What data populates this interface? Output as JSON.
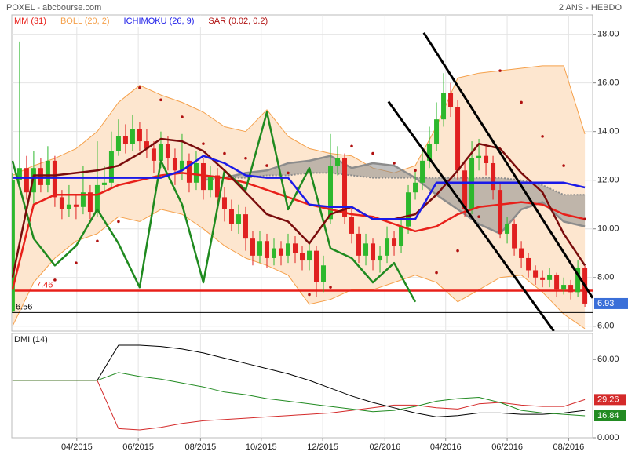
{
  "chart_data": [
    {
      "type": "candlestick",
      "source": "POXEL - abcbourse.com",
      "period": "2 ANS - HEBDO",
      "xlim": [
        -0.1,
        82.1
      ],
      "ylim": [
        5.8,
        18.6
      ],
      "yticks": [
        {
          "value": 6,
          "label": "6.00"
        },
        {
          "value": 8,
          "label": "8.00"
        },
        {
          "value": 10,
          "label": "10.00"
        },
        {
          "value": 12,
          "label": "12.00"
        },
        {
          "value": 14,
          "label": "14.00"
        },
        {
          "value": 16,
          "label": "16.00"
        },
        {
          "value": 18,
          "label": "18.00"
        }
      ],
      "grid": true,
      "up_color": "#2db82d",
      "down_color": "#e02020",
      "last_color": "#3a6fd8",
      "x": [
        0,
        1,
        2,
        3,
        4,
        5,
        6,
        7,
        8,
        9,
        10,
        11,
        12,
        13,
        14,
        15,
        16,
        17,
        18,
        19,
        20,
        21,
        22,
        23,
        24,
        25,
        26,
        27,
        28,
        29,
        30,
        31,
        32,
        33,
        34,
        35,
        36,
        37,
        38,
        39,
        40,
        41,
        42,
        43,
        44,
        45,
        46,
        47,
        48,
        49,
        50,
        51,
        52,
        53,
        54,
        55,
        56,
        57,
        58,
        59,
        60,
        61,
        62,
        63,
        64,
        65,
        66,
        67,
        68,
        69,
        70,
        71,
        72,
        73,
        74,
        75,
        76,
        77,
        78,
        79,
        80,
        81
      ],
      "open": [
        6.6,
        12.0,
        12.5,
        11.5,
        12.5,
        11.8,
        12.8,
        11.3,
        10.8,
        11.0,
        10.9,
        11.5,
        10.7,
        11.8,
        11.9,
        13.2,
        13.8,
        13.5,
        14.1,
        13.6,
        13.3,
        12.8,
        13.5,
        12.9,
        12.4,
        12.8,
        11.9,
        12.7,
        11.6,
        12.2,
        11.3,
        10.8,
        10.2,
        10.6,
        9.6,
        8.9,
        9.5,
        8.8,
        9.2,
        8.9,
        9.4,
        9.0,
        8.7,
        9.1,
        7.8,
        10.4,
        12.6,
        12.9,
        10.5,
        9.8,
        8.9,
        9.4,
        8.7,
        8.9,
        9.6,
        9.3,
        10.1,
        11.5,
        11.9,
        12.8,
        13.5,
        14.5,
        15.6,
        15.0,
        12.4,
        10.8,
        12.9,
        13.0,
        12.7,
        11.6,
        9.8,
        10.2,
        9.2,
        8.8,
        8.3,
        8.0,
        7.9,
        8.1,
        7.5,
        7.7,
        7.4,
        8.4
      ],
      "high": [
        12.3,
        17.7,
        13.0,
        13.2,
        12.9,
        13.4,
        13.0,
        11.6,
        11.8,
        11.4,
        12.6,
        11.8,
        13.6,
        12.6,
        14.0,
        14.5,
        14.3,
        14.7,
        14.4,
        14.1,
        13.6,
        14.0,
        13.8,
        13.3,
        13.9,
        13.1,
        13.2,
        12.9,
        12.6,
        12.5,
        11.7,
        11.2,
        11.0,
        10.9,
        9.9,
        9.9,
        9.8,
        9.6,
        9.5,
        9.8,
        9.7,
        9.3,
        9.5,
        9.3,
        8.9,
        13.9,
        13.4,
        13.1,
        10.9,
        10.1,
        9.8,
        9.6,
        9.3,
        10.1,
        9.9,
        10.4,
        11.8,
        12.4,
        13.3,
        14.2,
        15.2,
        16.4,
        16.0,
        15.3,
        12.8,
        13.6,
        13.7,
        13.5,
        13.0,
        11.9,
        10.5,
        10.4,
        9.5,
        9.0,
        8.5,
        8.3,
        8.4,
        8.2,
        8.0,
        7.9,
        8.7,
        8.5
      ],
      "low": [
        6.56,
        11.8,
        11.2,
        11.0,
        11.5,
        11.5,
        10.9,
        10.4,
        10.5,
        10.4,
        10.6,
        10.4,
        10.5,
        11.5,
        11.7,
        13.0,
        13.1,
        13.2,
        13.2,
        12.9,
        12.3,
        12.5,
        12.4,
        11.8,
        12.0,
        11.5,
        11.6,
        11.2,
        11.3,
        10.9,
        10.3,
        9.9,
        9.8,
        9.1,
        8.5,
        8.6,
        8.4,
        8.5,
        8.5,
        8.6,
        8.6,
        8.3,
        8.3,
        7.2,
        7.4,
        10.2,
        12.2,
        10.2,
        9.4,
        8.6,
        8.5,
        8.3,
        8.2,
        8.6,
        8.9,
        9.0,
        9.8,
        11.2,
        11.6,
        12.5,
        13.2,
        14.2,
        14.6,
        12.0,
        10.5,
        10.6,
        12.4,
        12.2,
        11.2,
        9.6,
        9.4,
        8.9,
        8.4,
        8.0,
        7.7,
        7.6,
        7.6,
        7.2,
        7.3,
        7.1,
        7.2,
        6.8
      ],
      "close": [
        12.0,
        12.5,
        11.5,
        12.5,
        11.8,
        12.8,
        11.3,
        10.8,
        11.0,
        10.9,
        11.5,
        10.7,
        11.8,
        11.9,
        13.2,
        13.8,
        13.5,
        14.1,
        13.6,
        13.3,
        12.8,
        13.5,
        12.9,
        12.4,
        12.8,
        11.9,
        12.7,
        11.6,
        12.2,
        11.3,
        10.8,
        10.2,
        10.6,
        9.6,
        8.9,
        9.5,
        8.8,
        9.2,
        8.9,
        9.4,
        9.0,
        8.7,
        9.1,
        7.8,
        8.5,
        12.6,
        12.9,
        10.5,
        9.8,
        8.9,
        9.4,
        8.7,
        8.9,
        9.6,
        9.3,
        10.1,
        11.5,
        11.9,
        12.8,
        13.5,
        14.5,
        15.6,
        15.0,
        12.4,
        10.8,
        12.9,
        13.0,
        12.7,
        11.6,
        9.8,
        10.2,
        9.2,
        8.8,
        8.3,
        8.0,
        7.9,
        8.1,
        7.5,
        7.7,
        7.4,
        8.4,
        6.93
      ],
      "indicator_x": [
        0,
        3,
        6,
        9,
        12,
        15,
        18,
        21,
        24,
        27,
        30,
        33,
        36,
        39,
        42,
        45,
        48,
        51,
        54,
        57,
        60,
        63,
        66,
        69,
        72,
        75,
        78,
        81
      ],
      "indicators": [
        {
          "name": "MM (31)",
          "color": "#e8201a",
          "values": [
            7.5,
            11.0,
            11.4,
            11.4,
            11.4,
            11.8,
            12.0,
            12.2,
            12.3,
            12.2,
            12.1,
            11.9,
            11.6,
            11.3,
            11.0,
            10.8,
            10.6,
            10.5,
            10.2,
            9.9,
            10.1,
            10.6,
            10.9,
            11.0,
            11.1,
            11.0,
            10.6,
            10.4
          ]
        },
        {
          "name": "BOLL (20, 2)",
          "color": "#f5a04a",
          "fill": "#fde6cf",
          "upper": [
            12.2,
            12.6,
            12.9,
            13.3,
            14.0,
            15.2,
            15.9,
            15.5,
            15.2,
            14.8,
            14.2,
            14.0,
            14.9,
            13.8,
            13.3,
            13.1,
            13.0,
            12.5,
            12.3,
            12.6,
            14.2,
            16.2,
            16.4,
            16.5,
            16.6,
            16.7,
            16.7,
            13.9
          ],
          "lower": [
            6.0,
            7.8,
            8.8,
            9.5,
            9.8,
            10.5,
            10.3,
            10.8,
            10.6,
            10.0,
            9.3,
            8.8,
            8.5,
            8.1,
            6.9,
            7.1,
            7.5,
            7.5,
            7.8,
            8.1,
            7.8,
            7.0,
            7.5,
            8.0,
            8.1,
            7.4,
            6.5,
            5.9
          ]
        },
        {
          "name": "ICHIMOKU (26, 9)",
          "color": "#1a1ae8",
          "kijun": [
            12.1,
            12.1,
            12.1,
            12.1,
            12.1,
            12.1,
            12.1,
            12.1,
            12.4,
            13.0,
            12.7,
            12.2,
            12.1,
            12.1,
            11.0,
            10.9,
            10.9,
            10.4,
            10.4,
            10.4,
            11.9,
            11.9,
            11.9,
            11.9,
            11.9,
            11.9,
            11.9,
            11.7
          ],
          "tenkan": [
            8.0,
            12.2,
            12.2,
            12.3,
            12.4,
            12.6,
            13.1,
            13.7,
            13.6,
            13.2,
            12.4,
            11.5,
            10.6,
            10.3,
            9.4,
            10.6,
            10.9,
            10.4,
            10.4,
            10.6,
            11.4,
            12.4,
            13.5,
            13.3,
            12.3,
            11.5,
            9.8,
            8.5
          ],
          "tenkan_color": "#7a0c0c",
          "chikou": [
            12.8,
            9.6,
            8.5,
            9.3,
            10.8,
            9.4,
            7.6,
            12.8,
            11.0,
            7.8,
            12.4,
            11.6,
            14.8,
            10.8,
            12.5,
            9.2,
            8.8,
            7.8,
            8.6,
            7.0,
            null,
            null,
            null,
            null,
            null,
            null,
            null,
            null
          ],
          "chikou_color": "#1f8a1f",
          "span_a": [
            null,
            null,
            null,
            null,
            null,
            null,
            null,
            null,
            null,
            12.0,
            12.1,
            12.1,
            12.2,
            12.2,
            12.3,
            12.3,
            12.2,
            12.1,
            12.1,
            12.1,
            12.1,
            12.1,
            12.1,
            12.1,
            12.0,
            11.8,
            11.4,
            11.4
          ],
          "span_b": [
            null,
            null,
            null,
            null,
            null,
            null,
            null,
            null,
            null,
            12.2,
            12.1,
            12.3,
            12.4,
            12.7,
            12.8,
            13.0,
            12.5,
            12.7,
            12.6,
            12.1,
            11.4,
            10.8,
            10.2,
            9.8,
            10.8,
            11.1,
            10.3,
            10.1
          ],
          "cloud_color": "#8c8c8c"
        },
        {
          "name": "SAR (0.02, 0.2)",
          "color": "#b01010",
          "values": [
            null,
            null,
            7.9,
            8.6,
            9.5,
            10.3,
            15.8,
            15.3,
            14.6,
            13.5,
            13.1,
            12.9,
            12.6,
            12.3,
            7.3,
            7.6,
            13.4,
            13.1,
            12.7,
            12.4,
            8.2,
            9.1,
            10.5,
            16.5,
            15.2,
            13.8,
            12.6,
            10.4
          ]
        }
      ],
      "hlines": [
        {
          "value": 7.46,
          "color": "#e8201a"
        },
        {
          "value": 6.56,
          "color": "#000000"
        }
      ],
      "trendlines": [
        {
          "x": [
            58.2,
            82.1
          ],
          "y": [
            18.06,
            7.16
          ]
        },
        {
          "x": [
            53.2,
            76.6
          ],
          "y": [
            15.23,
            5.8
          ]
        }
      ]
    },
    {
      "type": "line",
      "title": "DMI (14)",
      "xlim": [
        -0.1,
        82.1
      ],
      "xticks": [
        {
          "value": 9.1,
          "label": "04/2015"
        },
        {
          "value": 17.8,
          "label": "06/2015"
        },
        {
          "value": 26.6,
          "label": "08/2015"
        },
        {
          "value": 35.2,
          "label": "10/2015"
        },
        {
          "value": 43.9,
          "label": "12/2015"
        },
        {
          "value": 52.7,
          "label": "02/2016"
        },
        {
          "value": 61.3,
          "label": "04/2016"
        },
        {
          "value": 70,
          "label": "06/2016"
        },
        {
          "value": 78.7,
          "label": "08/2016"
        }
      ],
      "ylim": [
        0,
        80
      ],
      "yticks": [
        {
          "value": 0,
          "label": "0.000"
        },
        {
          "value": 60,
          "label": "60.00"
        }
      ],
      "x": [
        0,
        3,
        6,
        9,
        12,
        15,
        18,
        21,
        24,
        27,
        30,
        33,
        36,
        39,
        42,
        45,
        48,
        51,
        54,
        57,
        60,
        63,
        66,
        69,
        72,
        75,
        78,
        81
      ],
      "series": [
        {
          "color": "#000000",
          "values": [
            44,
            44,
            44,
            44,
            44,
            71,
            71,
            70,
            68,
            65,
            61,
            57,
            53,
            49,
            44,
            38,
            32,
            27,
            23,
            19,
            16,
            17,
            19,
            19,
            18,
            18,
            19,
            21
          ]
        },
        {
          "color": "#d42a2a",
          "show_last": true,
          "values": [
            44,
            44,
            44,
            44,
            44,
            7,
            6,
            8,
            11,
            13,
            14,
            15,
            16,
            17,
            18,
            19,
            21,
            23,
            25,
            25,
            23,
            22,
            26,
            27,
            25,
            24,
            24,
            29.26
          ]
        },
        {
          "color": "#228b22",
          "show_last": true,
          "values": [
            44,
            44,
            44,
            44,
            44,
            50,
            47,
            45,
            42,
            39,
            35,
            33,
            30,
            28,
            26,
            24,
            22,
            20,
            21,
            24,
            28,
            30,
            31,
            27,
            21,
            19,
            18,
            16.84
          ]
        }
      ]
    }
  ]
}
